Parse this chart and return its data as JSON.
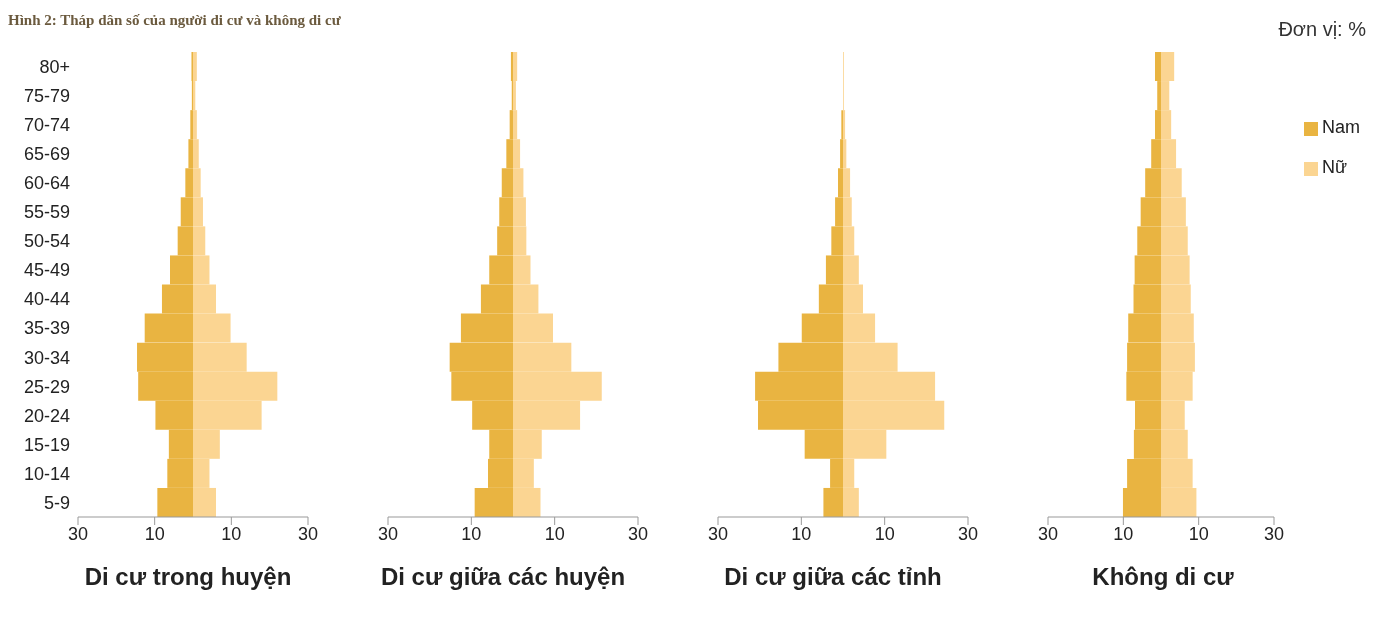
{
  "chart_data": [
    {
      "type": "bar",
      "orientation": "horizontal",
      "stacked": true,
      "title": "Hình 2: Tháp dân số của người di cư và không di cư",
      "xlabel": "Di cư trong huyện",
      "categories": [
        "80+",
        "75-79",
        "70-74",
        "65-69",
        "60-64",
        "55-59",
        "50-54",
        "45-49",
        "40-44",
        "35-39",
        "30-34",
        "25-29",
        "20-24",
        "15-19",
        "10-14",
        "5-9"
      ],
      "series": [
        {
          "color": "#e9b441",
          "values": [
            -0.4,
            -0.3,
            -0.7,
            -1.2,
            -2.0,
            -3.2,
            -4.0,
            -6.0,
            -8.1,
            -12.6,
            -14.6,
            -14.3,
            -9.8,
            -6.3,
            -6.7,
            -9.3
          ]
        },
        {
          "color": "#fbd592",
          "values": [
            1.0,
            0.6,
            1.0,
            1.5,
            2.0,
            2.6,
            3.2,
            4.3,
            6.0,
            9.8,
            14.0,
            22.0,
            17.9,
            7.0,
            4.3,
            6.0
          ]
        }
      ],
      "xlim": [
        -30,
        30
      ],
      "xticks": [
        {
          "value": -30,
          "label": "30"
        },
        {
          "value": -10,
          "label": "10"
        },
        {
          "value": 10,
          "label": "10"
        },
        {
          "value": 30,
          "label": "30"
        }
      ],
      "grid": false,
      "legend": false
    },
    {
      "type": "bar",
      "orientation": "horizontal",
      "stacked": true,
      "xlabel": "Di cư giữa các huyện",
      "categories": [
        null,
        null,
        null,
        null,
        null,
        null,
        null,
        null,
        null,
        null,
        null,
        null,
        null,
        null,
        null,
        null
      ],
      "series": [
        {
          "color": "#e9b441",
          "values": [
            -0.5,
            -0.3,
            -0.8,
            -1.6,
            -2.7,
            -3.3,
            -3.8,
            -5.7,
            -7.7,
            -12.5,
            -15.2,
            -14.8,
            -9.8,
            -5.7,
            -6.0,
            -9.2
          ]
        },
        {
          "color": "#fbd592",
          "values": [
            1.0,
            0.7,
            1.0,
            1.7,
            2.5,
            3.1,
            3.2,
            4.2,
            6.1,
            9.6,
            14.0,
            21.3,
            16.1,
            6.9,
            5.0,
            6.6
          ]
        }
      ],
      "xlim": [
        -30,
        30
      ],
      "xticks": [
        {
          "value": -30,
          "label": "30"
        },
        {
          "value": -10,
          "label": "10"
        },
        {
          "value": 10,
          "label": "10"
        },
        {
          "value": 30,
          "label": "30"
        }
      ],
      "tick_labels": "x",
      "grid": false,
      "legend": false
    },
    {
      "type": "bar",
      "orientation": "horizontal",
      "stacked": true,
      "xlabel": "Di cư giữa các tỉnh",
      "categories": [
        null,
        null,
        null,
        null,
        null,
        null,
        null,
        null,
        null,
        null,
        null,
        null,
        null,
        null,
        null,
        null
      ],
      "series": [
        {
          "color": "#e9b441",
          "values": [
            null,
            null,
            -0.4,
            -0.7,
            -1.2,
            -1.9,
            -2.8,
            -4.1,
            -5.8,
            -9.9,
            -15.5,
            -21.1,
            -20.4,
            -9.2,
            -3.1,
            -4.7
          ]
        },
        {
          "color": "#fbd592",
          "values": [
            0.2,
            0.2,
            0.5,
            0.8,
            1.7,
            2.1,
            2.7,
            3.8,
            4.8,
            7.7,
            13.1,
            22.1,
            24.3,
            10.4,
            2.7,
            3.8
          ]
        }
      ],
      "xlim": [
        -30,
        30
      ],
      "xticks": [
        {
          "value": -30,
          "label": "30"
        },
        {
          "value": -10,
          "label": "10"
        },
        {
          "value": 10,
          "label": "10"
        },
        {
          "value": 30,
          "label": "30"
        }
      ],
      "tick_labels": "x",
      "grid": false,
      "legend": false
    },
    {
      "type": "bar",
      "orientation": "horizontal",
      "stacked": true,
      "xlabel": "Không di cư",
      "annotations": [
        "Đơn vị: %"
      ],
      "categories": [
        null,
        null,
        null,
        null,
        null,
        null,
        null,
        null,
        null,
        null,
        null,
        null,
        null,
        null,
        null,
        null
      ],
      "series": [
        {
          "name": "Nam",
          "color": "#e9b441",
          "values": [
            -1.6,
            -1.0,
            -1.6,
            -2.6,
            -4.2,
            -5.4,
            -6.3,
            -7.0,
            -7.3,
            -8.7,
            -9.0,
            -9.2,
            -6.9,
            -7.2,
            -9.0,
            -10.1
          ]
        },
        {
          "name": "Nữ",
          "color": "#fbd592",
          "values": [
            3.5,
            2.2,
            2.7,
            4.0,
            5.5,
            6.6,
            7.1,
            7.6,
            7.9,
            8.7,
            9.0,
            8.4,
            6.3,
            7.1,
            8.4,
            9.4
          ]
        }
      ],
      "xlim": [
        -30,
        30
      ],
      "xticks": [
        {
          "value": -30,
          "label": "30"
        },
        {
          "value": -10,
          "label": "10"
        },
        {
          "value": 10,
          "label": "10"
        },
        {
          "value": 30,
          "label": "30"
        }
      ],
      "tick_labels": "x",
      "grid": false,
      "legend": "top right"
    }
  ]
}
